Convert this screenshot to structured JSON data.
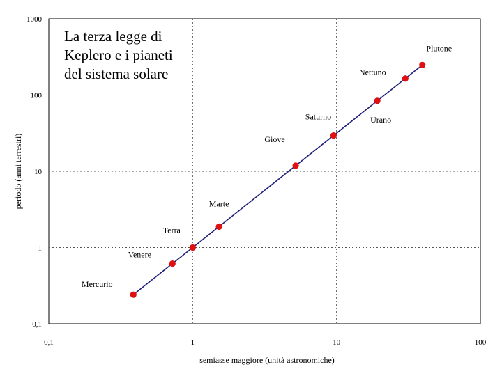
{
  "chart_data": {
    "type": "scatter",
    "title": [
      "La terza legge di",
      "Keplero e i pianeti",
      "del sistema solare"
    ],
    "xlabel": "semiasse maggiore (unità astronomiche)",
    "ylabel": "periodo (anni terrestri)",
    "xscale": "log",
    "yscale": "log",
    "xlim": [
      0.1,
      100
    ],
    "ylim": [
      0.1,
      1000
    ],
    "xticks": [
      0.1,
      1,
      10,
      100
    ],
    "xtick_labels": [
      "0,1",
      "1",
      "10",
      "100"
    ],
    "yticks": [
      0.1,
      1,
      10,
      100,
      1000
    ],
    "ytick_labels": [
      "0,1",
      "1",
      "10",
      "100",
      "1000"
    ],
    "grid": true,
    "grid_style": "dashed",
    "legend": false,
    "fit_line": {
      "x": [
        0.387,
        39.5
      ],
      "y": [
        0.241,
        248
      ],
      "color": "#1f1f7a"
    },
    "marker_color": "#e01010",
    "points": [
      {
        "name": "Mercurio",
        "x": 0.387,
        "y": 0.241
      },
      {
        "name": "Venere",
        "x": 0.723,
        "y": 0.615
      },
      {
        "name": "Terra",
        "x": 1.0,
        "y": 1.0
      },
      {
        "name": "Marte",
        "x": 1.524,
        "y": 1.881
      },
      {
        "name": "Giove",
        "x": 5.2,
        "y": 11.86
      },
      {
        "name": "Saturno",
        "x": 9.54,
        "y": 29.46
      },
      {
        "name": "Urano",
        "x": 19.2,
        "y": 84.0
      },
      {
        "name": "Nettuno",
        "x": 30.06,
        "y": 164.8
      },
      {
        "name": "Plutone",
        "x": 39.5,
        "y": 248.0
      }
    ]
  }
}
